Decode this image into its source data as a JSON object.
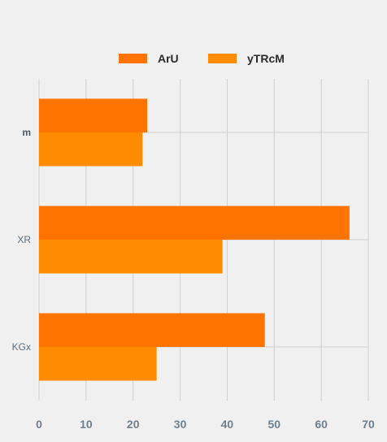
{
  "chart_data": {
    "type": "bar",
    "orientation": "horizontal",
    "categories": [
      "m",
      "XR",
      "KGx"
    ],
    "series": [
      {
        "name": "ArU",
        "color": "#ff7300",
        "values": [
          23,
          66,
          48
        ]
      },
      {
        "name": "yTRcM",
        "color": "#ff8c00",
        "values": [
          22,
          39,
          25
        ]
      }
    ],
    "xlim": [
      0,
      70
    ],
    "xticks": [
      0,
      10,
      20,
      30,
      40,
      50,
      60,
      70
    ],
    "grid": true,
    "legend": "top-center",
    "title": "",
    "xlabel": "",
    "ylabel": ""
  }
}
